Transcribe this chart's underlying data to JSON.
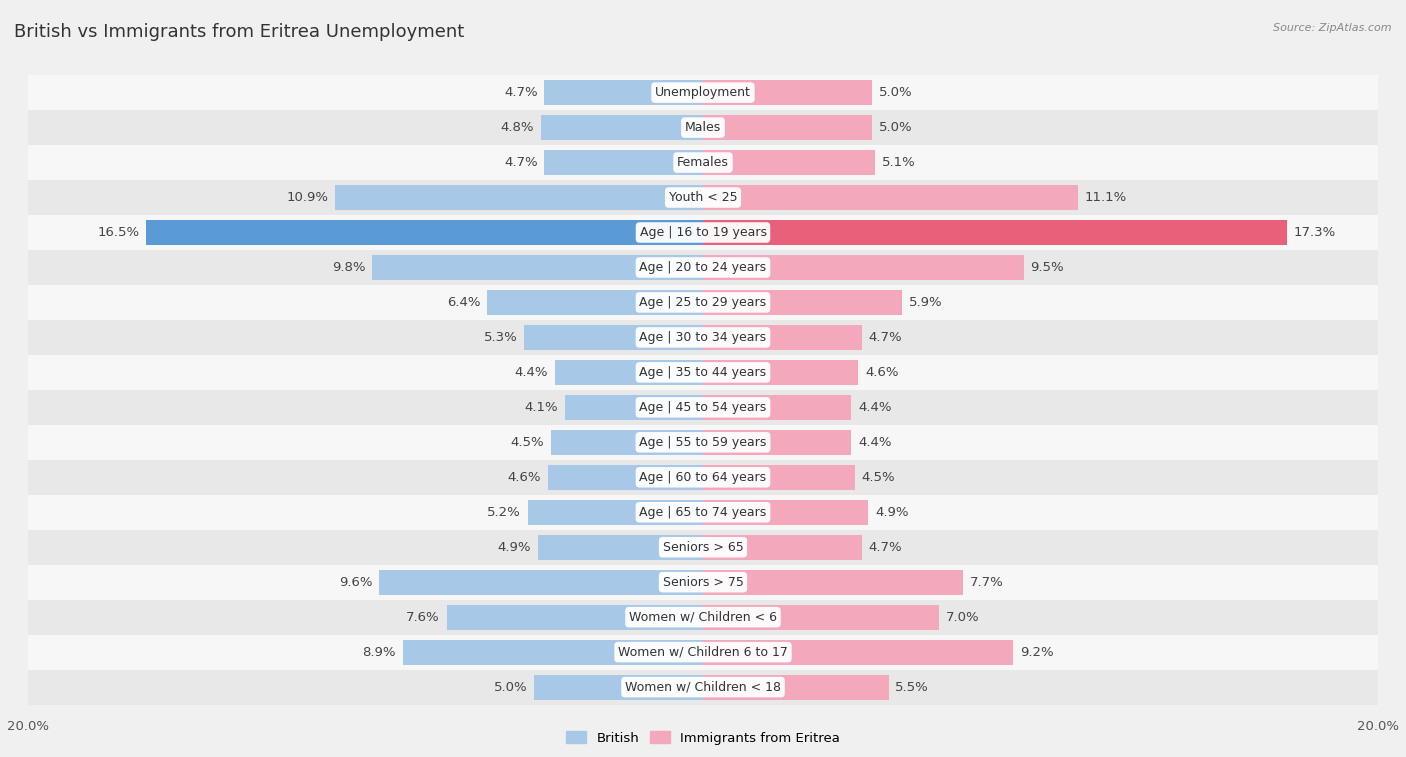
{
  "title": "British vs Immigrants from Eritrea Unemployment",
  "source": "Source: ZipAtlas.com",
  "categories": [
    "Unemployment",
    "Males",
    "Females",
    "Youth < 25",
    "Age | 16 to 19 years",
    "Age | 20 to 24 years",
    "Age | 25 to 29 years",
    "Age | 30 to 34 years",
    "Age | 35 to 44 years",
    "Age | 45 to 54 years",
    "Age | 55 to 59 years",
    "Age | 60 to 64 years",
    "Age | 65 to 74 years",
    "Seniors > 65",
    "Seniors > 75",
    "Women w/ Children < 6",
    "Women w/ Children 6 to 17",
    "Women w/ Children < 18"
  ],
  "british": [
    4.7,
    4.8,
    4.7,
    10.9,
    16.5,
    9.8,
    6.4,
    5.3,
    4.4,
    4.1,
    4.5,
    4.6,
    5.2,
    4.9,
    9.6,
    7.6,
    8.9,
    5.0
  ],
  "eritrea": [
    5.0,
    5.0,
    5.1,
    11.1,
    17.3,
    9.5,
    5.9,
    4.7,
    4.6,
    4.4,
    4.4,
    4.5,
    4.9,
    4.7,
    7.7,
    7.0,
    9.2,
    5.5
  ],
  "british_color": "#a8c8e8",
  "eritrea_color": "#f4a8bc",
  "british_highlight_color": "#5b9bd5",
  "eritrea_highlight_color": "#e8607a",
  "highlight_row": 4,
  "bar_height": 0.72,
  "bg_color": "#f0f0f0",
  "row_bg_light": "#f7f7f7",
  "row_bg_dark": "#e8e8e8",
  "axis_limit": 20.0,
  "label_fontsize": 9.5,
  "category_fontsize": 9,
  "title_fontsize": 13,
  "legend_british": "British",
  "legend_eritrea": "Immigrants from Eritrea"
}
